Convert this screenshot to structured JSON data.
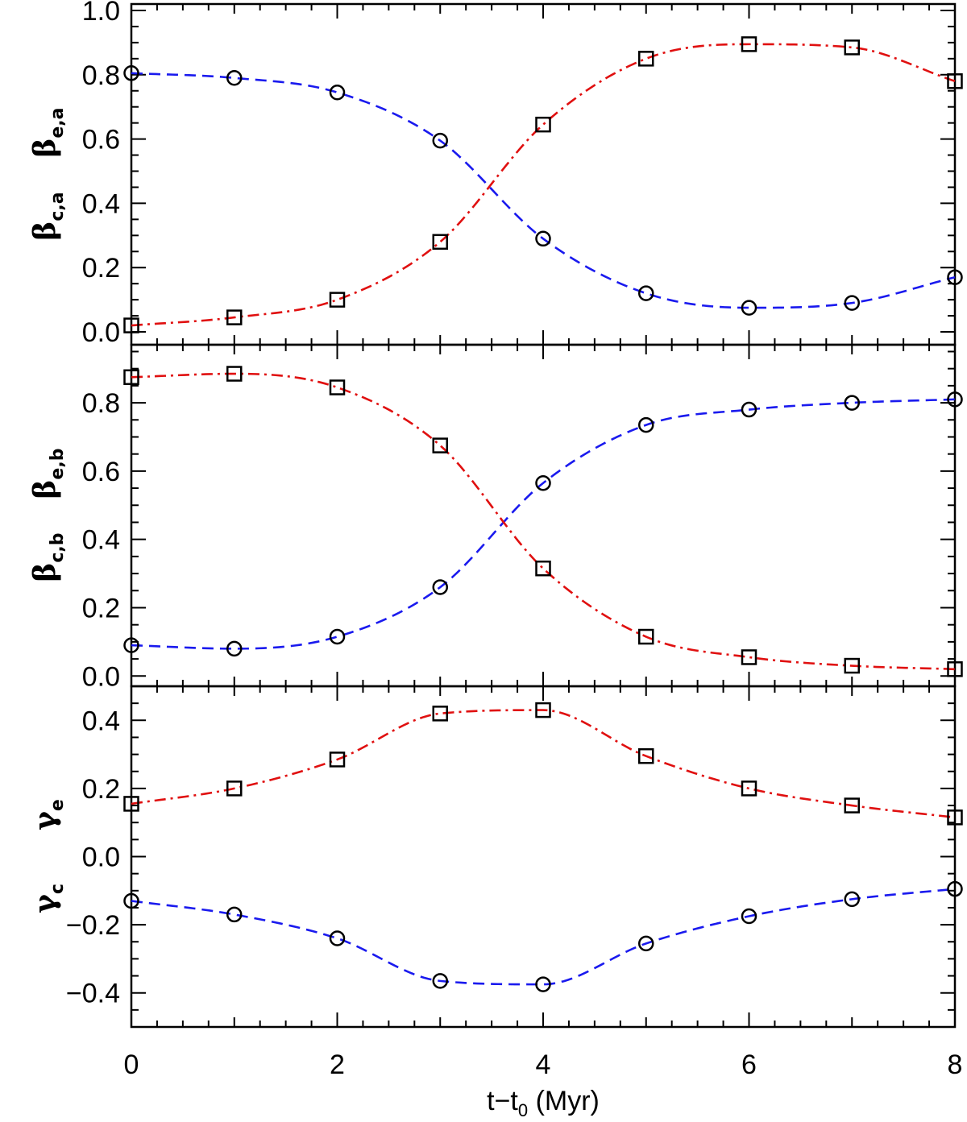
{
  "chart_data": [
    {
      "type": "line",
      "panel": "top",
      "x": [
        0,
        1,
        2,
        3,
        4,
        5,
        6,
        7,
        8
      ],
      "xlim": [
        0,
        8
      ],
      "ylim": [
        -0.04,
        1.02
      ],
      "yticks": [
        0.0,
        0.2,
        0.4,
        0.6,
        0.8,
        1.0
      ],
      "ytick_labels": [
        "0.0",
        "0.2",
        "0.4",
        "0.6",
        "0.8",
        "1.0"
      ],
      "ylabel_c": {
        "main": "β",
        "sub": "c,a"
      },
      "ylabel_e": {
        "main": "β",
        "sub": "e,a"
      },
      "series": [
        {
          "name": "beta_c,a",
          "marker": "circle",
          "line_style": "dashed",
          "color": "#1a1aee",
          "values": [
            0.805,
            0.79,
            0.745,
            0.595,
            0.29,
            0.12,
            0.075,
            0.09,
            0.17
          ]
        },
        {
          "name": "beta_e,a",
          "marker": "square",
          "line_style": "dash-dot",
          "color": "#e01010",
          "values": [
            0.02,
            0.045,
            0.1,
            0.28,
            0.645,
            0.85,
            0.895,
            0.885,
            0.78
          ]
        }
      ]
    },
    {
      "type": "line",
      "panel": "middle",
      "x": [
        0,
        1,
        2,
        3,
        4,
        5,
        6,
        7,
        8
      ],
      "xlim": [
        0,
        8
      ],
      "ylim": [
        -0.03,
        0.97
      ],
      "yticks": [
        0.0,
        0.2,
        0.4,
        0.6,
        0.8
      ],
      "ytick_labels": [
        "0.0",
        "0.2",
        "0.4",
        "0.6",
        "0.8"
      ],
      "ylabel_c": {
        "main": "β",
        "sub": "c,b"
      },
      "ylabel_e": {
        "main": "β",
        "sub": "e,b"
      },
      "series": [
        {
          "name": "beta_c,b",
          "marker": "circle",
          "line_style": "dashed",
          "color": "#1a1aee",
          "values": [
            0.09,
            0.08,
            0.115,
            0.26,
            0.565,
            0.735,
            0.78,
            0.8,
            0.81
          ]
        },
        {
          "name": "beta_e,b",
          "marker": "square",
          "line_style": "dash-dot",
          "color": "#e01010",
          "values": [
            0.875,
            0.885,
            0.845,
            0.675,
            0.315,
            0.115,
            0.055,
            0.03,
            0.02
          ]
        }
      ]
    },
    {
      "type": "line",
      "panel": "bottom",
      "x": [
        0,
        1,
        2,
        3,
        4,
        5,
        6,
        7,
        8
      ],
      "xlim": [
        0,
        8
      ],
      "ylim": [
        -0.5,
        0.5
      ],
      "yticks": [
        -0.4,
        -0.2,
        0.0,
        0.2,
        0.4
      ],
      "ytick_labels": [
        "−0.4",
        "−0.2",
        "0.0",
        "0.2",
        "0.4"
      ],
      "ylabel_c": {
        "main": "γ",
        "sub": "c"
      },
      "ylabel_e": {
        "main": "γ",
        "sub": "e"
      },
      "xticks": [
        0,
        2,
        4,
        6,
        8
      ],
      "xtick_labels": [
        "0",
        "2",
        "4",
        "6",
        "8"
      ],
      "xlabel": "t−t",
      "xlabel_sub": "0",
      "xlabel_unit": " (Myr)",
      "series": [
        {
          "name": "gamma_c",
          "marker": "circle",
          "line_style": "dashed",
          "color": "#1a1aee",
          "values": [
            -0.13,
            -0.17,
            -0.24,
            -0.365,
            -0.375,
            -0.255,
            -0.175,
            -0.125,
            -0.095
          ]
        },
        {
          "name": "gamma_e",
          "marker": "square",
          "line_style": "dash-dot",
          "color": "#e01010",
          "values": [
            0.155,
            0.2,
            0.285,
            0.42,
            0.43,
            0.295,
            0.2,
            0.15,
            0.115
          ]
        }
      ]
    }
  ]
}
